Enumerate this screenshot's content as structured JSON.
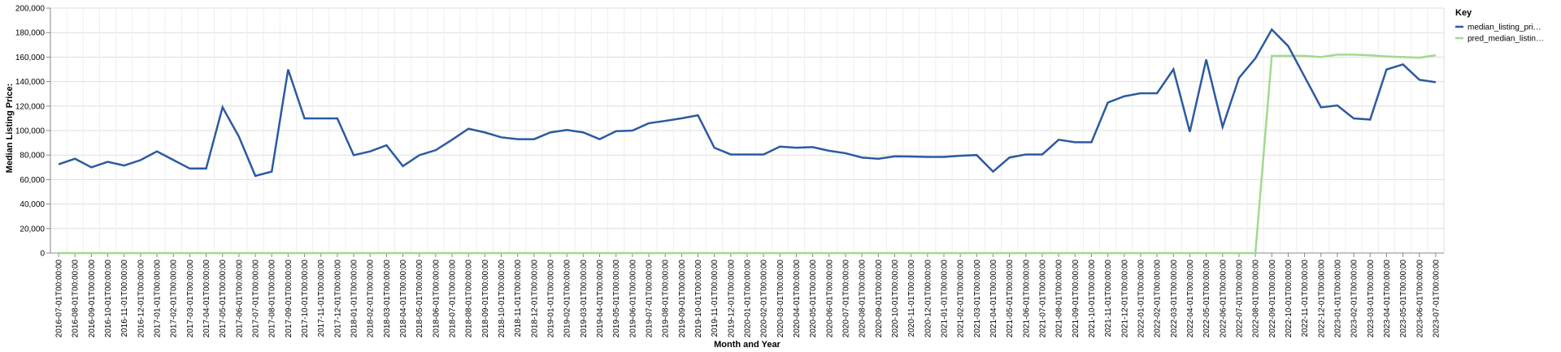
{
  "chart_data": {
    "type": "line",
    "xlabel": "Month and Year",
    "ylabel": "Median Listing Price:",
    "ylim": [
      0,
      200000
    ],
    "yticks": [
      "0",
      "20,000",
      "40,000",
      "60,000",
      "80,000",
      "100,000",
      "120,000",
      "140,000",
      "160,000",
      "180,000",
      "200,000"
    ],
    "grid": true,
    "legend": {
      "title": "Key",
      "position": "right"
    },
    "categories": [
      "2016-07-01T00:00:00",
      "2016-08-01T00:00:00",
      "2016-09-01T00:00:00",
      "2016-10-01T00:00:00",
      "2016-11-01T00:00:00",
      "2016-12-01T00:00:00",
      "2017-01-01T00:00:00",
      "2017-02-01T00:00:00",
      "2017-03-01T00:00:00",
      "2017-04-01T00:00:00",
      "2017-05-01T00:00:00",
      "2017-06-01T00:00:00",
      "2017-07-01T00:00:00",
      "2017-08-01T00:00:00",
      "2017-09-01T00:00:00",
      "2017-10-01T00:00:00",
      "2017-11-01T00:00:00",
      "2017-12-01T00:00:00",
      "2018-01-01T00:00:00",
      "2018-02-01T00:00:00",
      "2018-03-01T00:00:00",
      "2018-04-01T00:00:00",
      "2018-05-01T00:00:00",
      "2018-06-01T00:00:00",
      "2018-07-01T00:00:00",
      "2018-08-01T00:00:00",
      "2018-09-01T00:00:00",
      "2018-10-01T00:00:00",
      "2018-11-01T00:00:00",
      "2018-12-01T00:00:00",
      "2019-01-01T00:00:00",
      "2019-02-01T00:00:00",
      "2019-03-01T00:00:00",
      "2019-04-01T00:00:00",
      "2019-05-01T00:00:00",
      "2019-06-01T00:00:00",
      "2019-07-01T00:00:00",
      "2019-08-01T00:00:00",
      "2019-09-01T00:00:00",
      "2019-10-01T00:00:00",
      "2019-11-01T00:00:00",
      "2019-12-01T00:00:00",
      "2020-01-01T00:00:00",
      "2020-02-01T00:00:00",
      "2020-03-01T00:00:00",
      "2020-04-01T00:00:00",
      "2020-05-01T00:00:00",
      "2020-06-01T00:00:00",
      "2020-07-01T00:00:00",
      "2020-08-01T00:00:00",
      "2020-09-01T00:00:00",
      "2020-10-01T00:00:00",
      "2020-11-01T00:00:00",
      "2020-12-01T00:00:00",
      "2021-01-01T00:00:00",
      "2021-02-01T00:00:00",
      "2021-03-01T00:00:00",
      "2021-04-01T00:00:00",
      "2021-05-01T00:00:00",
      "2021-06-01T00:00:00",
      "2021-07-01T00:00:00",
      "2021-08-01T00:00:00",
      "2021-09-01T00:00:00",
      "2021-10-01T00:00:00",
      "2021-11-01T00:00:00",
      "2021-12-01T00:00:00",
      "2022-01-01T00:00:00",
      "2022-02-01T00:00:00",
      "2022-03-01T00:00:00",
      "2022-04-01T00:00:00",
      "2022-05-01T00:00:00",
      "2022-06-01T00:00:00",
      "2022-07-01T00:00:00",
      "2022-08-01T00:00:00",
      "2022-09-01T00:00:00",
      "2022-10-01T00:00:00",
      "2022-11-01T00:00:00",
      "2022-12-01T00:00:00",
      "2023-01-01T00:00:00",
      "2023-02-01T00:00:00",
      "2023-03-01T00:00:00",
      "2023-04-01T00:00:00",
      "2023-05-01T00:00:00",
      "2023-06-01T00:00:00",
      "2023-07-01T00:00:00"
    ],
    "series": [
      {
        "name": "median_listing_pri…",
        "color": "#2c5aa0",
        "values": [
          72500,
          77000,
          70000,
          74500,
          71500,
          75900,
          83000,
          76000,
          69000,
          69000,
          119000,
          95000,
          63000,
          66500,
          149900,
          109900,
          109900,
          109900,
          79900,
          83000,
          88000,
          71000,
          79900,
          84000,
          92500,
          101500,
          98500,
          94500,
          93000,
          93000,
          98500,
          100500,
          98500,
          93000,
          99500,
          100000,
          106000,
          107900,
          110000,
          112500,
          86000,
          80500,
          80500,
          80500,
          86900,
          86000,
          86500,
          83500,
          81500,
          78000,
          77000,
          79000,
          78800,
          78500,
          78500,
          79500,
          80000,
          66500,
          78000,
          80500,
          80500,
          92500,
          90500,
          90500,
          122900,
          128000,
          130500,
          130500,
          150000,
          99000,
          158000,
          103000,
          143000,
          159000,
          182500,
          169000,
          144000,
          119000,
          120500,
          109900,
          109000,
          149900,
          154000,
          141500,
          139500
        ]
      },
      {
        "name": "pred_median_listin…",
        "color": "#a3d98f",
        "values": [
          0,
          0,
          0,
          0,
          0,
          0,
          0,
          0,
          0,
          0,
          0,
          0,
          0,
          0,
          0,
          0,
          0,
          0,
          0,
          0,
          0,
          0,
          0,
          0,
          0,
          0,
          0,
          0,
          0,
          0,
          0,
          0,
          0,
          0,
          0,
          0,
          0,
          0,
          0,
          0,
          0,
          0,
          0,
          0,
          0,
          0,
          0,
          0,
          0,
          0,
          0,
          0,
          0,
          0,
          0,
          0,
          0,
          0,
          0,
          0,
          0,
          0,
          0,
          0,
          0,
          0,
          0,
          0,
          0,
          0,
          0,
          0,
          0,
          0,
          161000,
          161000,
          161000,
          160000,
          162000,
          162000,
          161500,
          160500,
          160000,
          159500,
          161500
        ]
      }
    ]
  }
}
